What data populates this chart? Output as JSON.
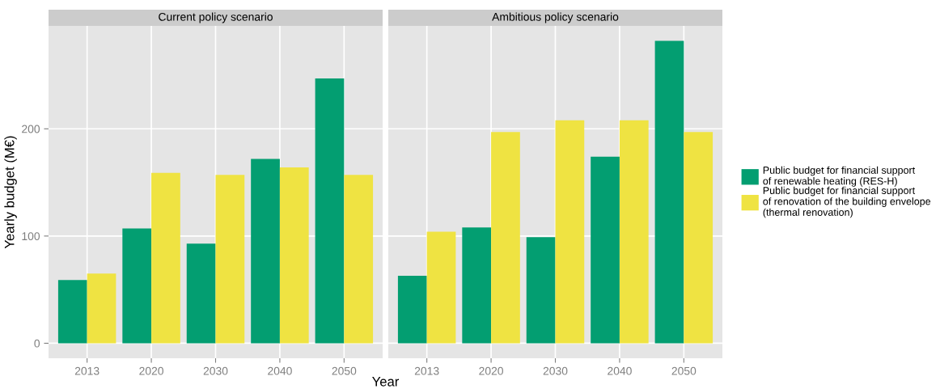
{
  "chart_data": [
    {
      "type": "bar",
      "title": "Current policy scenario",
      "xlabel": "Year",
      "ylabel": "Yearly budget (M€)",
      "categories": [
        "2013",
        "2020",
        "2030",
        "2040",
        "2050"
      ],
      "ylim": [
        -14,
        296
      ],
      "yticks": [
        0,
        100,
        200
      ],
      "grid": true,
      "legend": "right",
      "series": [
        {
          "name": "Public budget for financial support\nof renewable heating (RES-H)",
          "color": "#039e71",
          "values": [
            59,
            107,
            93,
            172,
            247
          ]
        },
        {
          "name": "Public budget for financial support\nof renovation of the building envelope\n(thermal renovation)",
          "color": "#efe342",
          "values": [
            65,
            159,
            157,
            164,
            157
          ]
        }
      ]
    },
    {
      "type": "bar",
      "title": "Ambitious policy scenario",
      "categories": [
        "2013",
        "2020",
        "2030",
        "2040",
        "2050"
      ],
      "ylim": [
        -14,
        296
      ],
      "yticks": [
        0,
        100,
        200
      ],
      "grid": true,
      "tick_labels": "x",
      "series": [
        {
          "color": "#039e71",
          "values": [
            63,
            108,
            99,
            174,
            282
          ]
        },
        {
          "color": "#efe342",
          "values": [
            104,
            197,
            208,
            208,
            197
          ]
        }
      ]
    }
  ]
}
